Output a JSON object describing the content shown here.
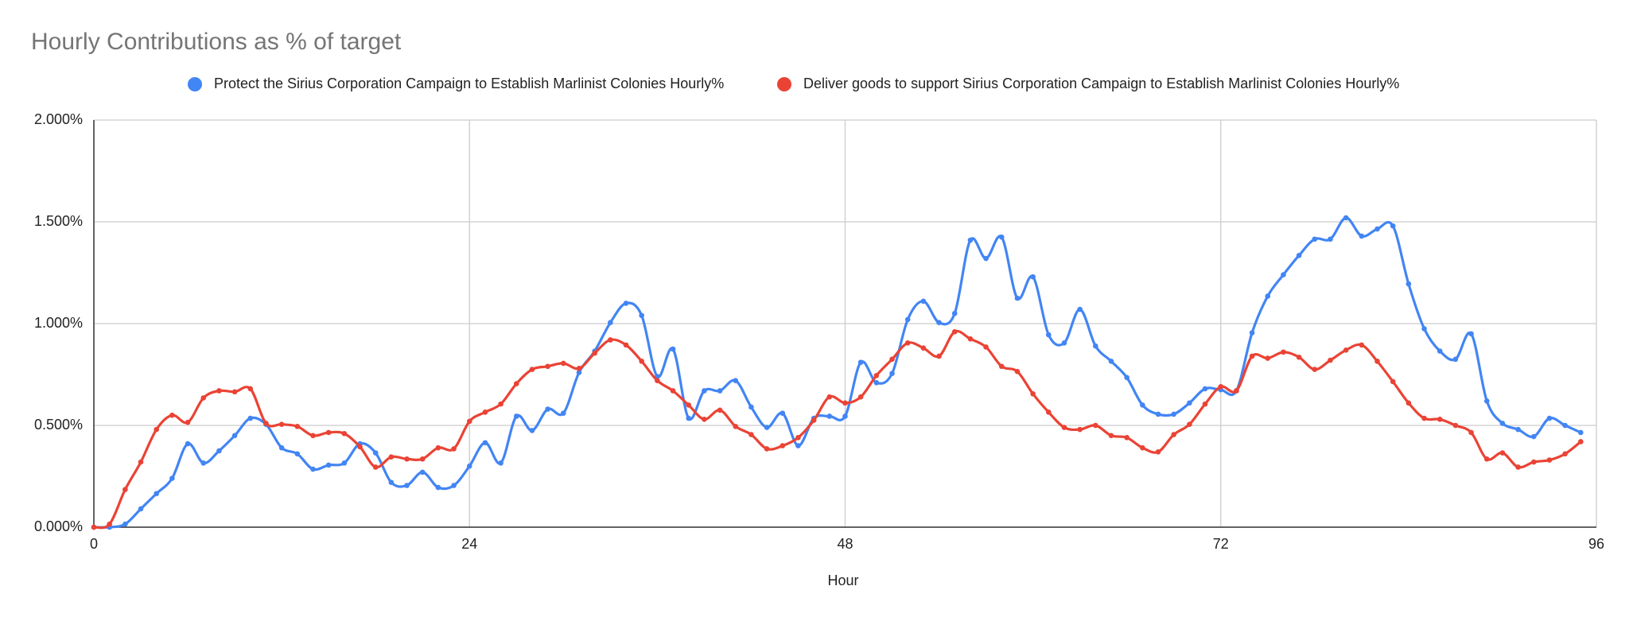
{
  "chart_data": {
    "type": "line",
    "title": "Hourly Contributions as % of target",
    "x_label": "Hour",
    "x": [
      0,
      1,
      2,
      3,
      4,
      5,
      6,
      7,
      8,
      9,
      10,
      11,
      12,
      13,
      14,
      15,
      16,
      17,
      18,
      19,
      20,
      21,
      22,
      23,
      24,
      25,
      26,
      27,
      28,
      29,
      30,
      31,
      32,
      33,
      34,
      35,
      36,
      37,
      38,
      39,
      40,
      41,
      42,
      43,
      44,
      45,
      46,
      47,
      48,
      49,
      50,
      51,
      52,
      53,
      54,
      55,
      56,
      57,
      58,
      59,
      60,
      61,
      62,
      63,
      64,
      65,
      66,
      67,
      68,
      69,
      70,
      71,
      72,
      73,
      74,
      75,
      76,
      77,
      78,
      79,
      80,
      81,
      82,
      83,
      84,
      85,
      86,
      87,
      88,
      89,
      90,
      91,
      92,
      93,
      94,
      95
    ],
    "series": [
      {
        "name": "Protect the Sirius Corporation Campaign to Establish Marlinist Colonies Hourly%",
        "color": "#4285f4",
        "values": [
          0,
          0,
          0.015,
          0.09,
          0.165,
          0.24,
          0.41,
          0.315,
          0.375,
          0.45,
          0.535,
          0.505,
          0.39,
          0.36,
          0.285,
          0.305,
          0.315,
          0.41,
          0.365,
          0.22,
          0.205,
          0.27,
          0.195,
          0.205,
          0.3,
          0.415,
          0.315,
          0.545,
          0.475,
          0.58,
          0.56,
          0.76,
          0.865,
          1.005,
          1.1,
          1.04,
          0.74,
          0.875,
          0.535,
          0.67,
          0.67,
          0.72,
          0.59,
          0.49,
          0.56,
          0.4,
          0.535,
          0.545,
          0.545,
          0.81,
          0.71,
          0.755,
          1.02,
          1.11,
          1.005,
          1.05,
          1.41,
          1.32,
          1.425,
          1.125,
          1.23,
          0.945,
          0.905,
          1.07,
          0.89,
          0.815,
          0.735,
          0.6,
          0.555,
          0.555,
          0.61,
          0.68,
          0.675,
          0.67,
          0.955,
          1.135,
          1.24,
          1.335,
          1.415,
          1.415,
          1.52,
          1.43,
          1.465,
          1.48,
          1.195,
          0.975,
          0.865,
          0.825,
          0.95,
          0.62,
          0.51,
          0.48,
          0.445,
          0.535,
          0.5,
          0.465
        ]
      },
      {
        "name": "Deliver goods to support Sirius Corporation Campaign to Establish Marlinist Colonies Hourly%",
        "color": "#ea4335",
        "values": [
          0,
          0.015,
          0.185,
          0.32,
          0.48,
          0.55,
          0.515,
          0.635,
          0.67,
          0.665,
          0.68,
          0.51,
          0.505,
          0.495,
          0.45,
          0.465,
          0.46,
          0.395,
          0.295,
          0.345,
          0.335,
          0.335,
          0.39,
          0.385,
          0.52,
          0.565,
          0.605,
          0.705,
          0.775,
          0.79,
          0.805,
          0.78,
          0.855,
          0.92,
          0.895,
          0.815,
          0.72,
          0.67,
          0.6,
          0.53,
          0.575,
          0.495,
          0.455,
          0.385,
          0.4,
          0.44,
          0.525,
          0.64,
          0.61,
          0.64,
          0.745,
          0.825,
          0.905,
          0.88,
          0.84,
          0.96,
          0.925,
          0.885,
          0.79,
          0.765,
          0.655,
          0.565,
          0.49,
          0.48,
          0.5,
          0.45,
          0.44,
          0.39,
          0.37,
          0.455,
          0.505,
          0.605,
          0.69,
          0.67,
          0.84,
          0.83,
          0.86,
          0.835,
          0.775,
          0.82,
          0.87,
          0.895,
          0.815,
          0.715,
          0.61,
          0.535,
          0.53,
          0.5,
          0.465,
          0.335,
          0.365,
          0.295,
          0.32,
          0.33,
          0.36,
          0.42
        ]
      }
    ],
    "xlim": [
      0,
      96
    ],
    "xticks": [
      0,
      24,
      48,
      72,
      96
    ],
    "ylim": [
      0,
      2
    ],
    "yticks": [
      {
        "value": 0,
        "label": "0.000%"
      },
      {
        "value": 0.5,
        "label": "0.500%"
      },
      {
        "value": 1,
        "label": "1.000%"
      },
      {
        "value": 1.5,
        "label": "1.500%"
      },
      {
        "value": 2,
        "label": "2.000%"
      }
    ],
    "grid": true,
    "legend": "top"
  }
}
